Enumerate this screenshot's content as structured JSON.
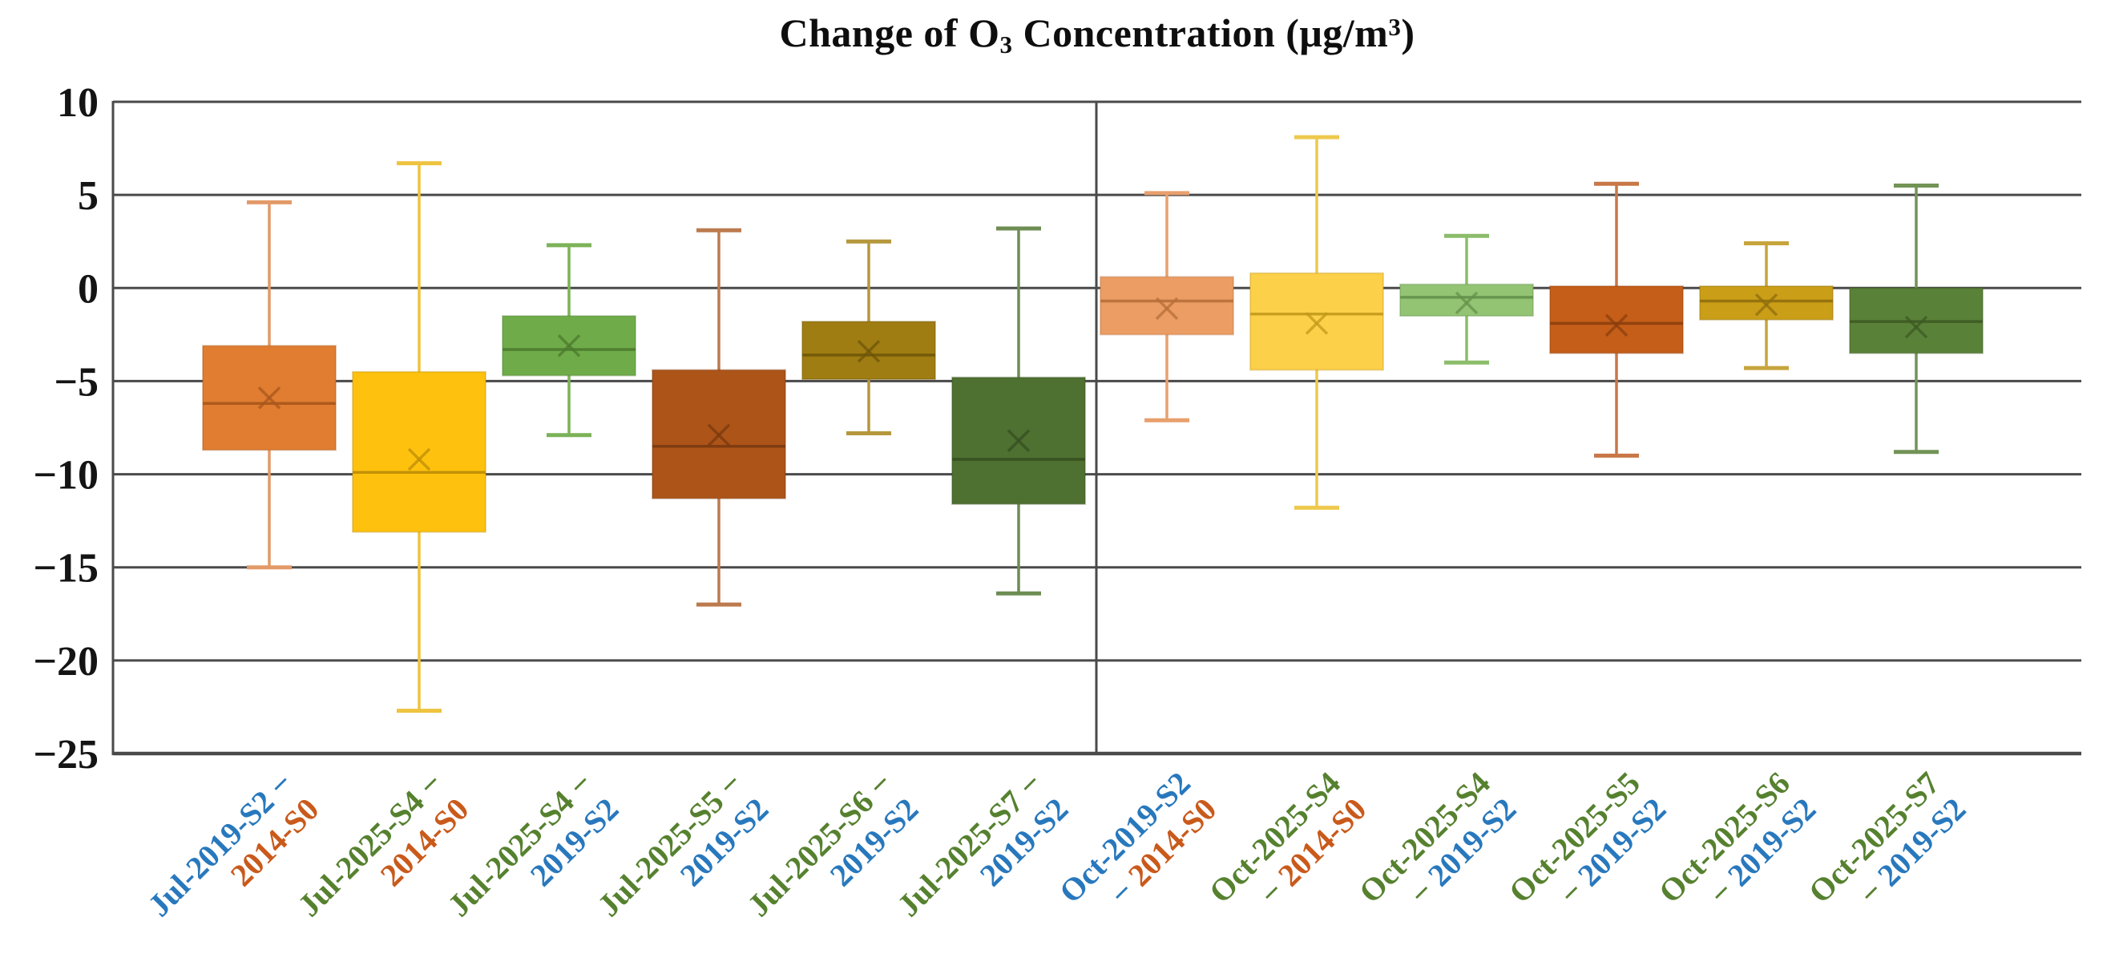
{
  "title": {
    "prefix": "Change of O",
    "sub": "3",
    "mid": " Concentration (μg/m",
    "sup": "3",
    "suffix": ")"
  },
  "y_axis": {
    "tick_labels": [
      "10",
      "5",
      "0",
      "−5",
      "−10",
      "−15",
      "−20",
      "−25"
    ],
    "tick_values": [
      10,
      5,
      0,
      -5,
      -10,
      -15,
      -20,
      -25
    ]
  },
  "label_palette": {
    "blue": "#2878bd",
    "green": "#56812f",
    "orange": "#c95a1b"
  },
  "chart_data": {
    "type": "boxplot",
    "title": "Change of O₃ Concentration (μg/m³)",
    "ylim": [
      -25,
      10
    ],
    "ytick_interval": 5,
    "grid": "horizontal",
    "legend": "none",
    "group_divider_after_series": 6,
    "groups": [
      "Jul",
      "Oct"
    ],
    "series": [
      {
        "label": "Jul-2019-S2 − 2014-S0",
        "period_a": "Jul-2019-S2",
        "period_a_color": "blue",
        "period_b": "2014-S0",
        "period_b_color": "orange",
        "minus_position": "after_a",
        "fill": "#e07d31",
        "edge": "#a9571c",
        "whisker_color": "#e29a68",
        "whisker_low": -15.0,
        "q1": -8.7,
        "median": -6.2,
        "mean": -5.9,
        "q3": -3.1,
        "whisker_high": 4.6
      },
      {
        "label": "Jul-2025-S4 − 2014-S0",
        "period_a": "Jul-2025-S4",
        "period_a_color": "green",
        "period_b": "2014-S0",
        "period_b_color": "orange",
        "minus_position": "after_a",
        "fill": "#fec20e",
        "edge": "#bd8d06",
        "whisker_color": "#eec33f",
        "whisker_low": -22.7,
        "q1": -13.1,
        "median": -9.9,
        "mean": -9.2,
        "q3": -4.5,
        "whisker_high": 6.7
      },
      {
        "label": "Jul-2025-S4 − 2019-S2",
        "period_a": "Jul-2025-S4",
        "period_a_color": "green",
        "period_b": "2019-S2",
        "period_b_color": "blue",
        "minus_position": "after_a",
        "fill": "#6fac49",
        "edge": "#4b7a2e",
        "whisker_color": "#7cb258",
        "whisker_low": -7.9,
        "q1": -4.7,
        "median": -3.3,
        "mean": -3.1,
        "q3": -1.5,
        "whisker_high": 2.3
      },
      {
        "label": "Jul-2025-S5 − 2019-S2",
        "period_a": "Jul-2025-S5",
        "period_a_color": "green",
        "period_b": "2019-S2",
        "period_b_color": "blue",
        "minus_position": "after_a",
        "fill": "#ad5418",
        "edge": "#7a3a0f",
        "whisker_color": "#bc7a4e",
        "whisker_low": -17.0,
        "q1": -11.3,
        "median": -8.5,
        "mean": -7.9,
        "q3": -4.4,
        "whisker_high": 3.1
      },
      {
        "label": "Jul-2025-S6 − 2019-S2",
        "period_a": "Jul-2025-S6",
        "period_a_color": "green",
        "period_b": "2019-S2",
        "period_b_color": "blue",
        "minus_position": "after_a",
        "fill": "#a07d12",
        "edge": "#6f560a",
        "whisker_color": "#b5973d",
        "whisker_low": -7.8,
        "q1": -4.9,
        "median": -3.6,
        "mean": -3.4,
        "q3": -1.8,
        "whisker_high": 2.5
      },
      {
        "label": "Jul-2025-S7 − 2019-S2",
        "period_a": "Jul-2025-S7",
        "period_a_color": "green",
        "period_b": "2019-S2",
        "period_b_color": "blue",
        "minus_position": "after_a",
        "fill": "#4e7031",
        "edge": "#364f20",
        "whisker_color": "#6d8d53",
        "whisker_low": -16.4,
        "q1": -11.6,
        "median": -9.2,
        "mean": -8.2,
        "q3": -4.8,
        "whisker_high": 3.2
      },
      {
        "label": "Oct-2019-S2 − 2014-S0",
        "period_a": "Oct-2019-S2",
        "period_a_color": "blue",
        "period_b": "2014-S0",
        "period_b_color": "orange",
        "minus_position": "before_b",
        "fill": "#eb9d64",
        "edge": "#b76f38",
        "whisker_color": "#e8a06e",
        "whisker_low": -7.1,
        "q1": -2.5,
        "median": -0.7,
        "mean": -1.1,
        "q3": 0.6,
        "whisker_high": 5.1
      },
      {
        "label": "Oct-2025-S4 − 2014-S0",
        "period_a": "Oct-2025-S4",
        "period_a_color": "green",
        "period_b": "2014-S0",
        "period_b_color": "orange",
        "minus_position": "before_b",
        "fill": "#fdd04a",
        "edge": "#c2991a",
        "whisker_color": "#eec94e",
        "whisker_low": -11.8,
        "q1": -4.4,
        "median": -1.4,
        "mean": -1.9,
        "q3": 0.8,
        "whisker_high": 8.1
      },
      {
        "label": "Oct-2025-S4 − 2019-S2",
        "period_a": "Oct-2025-S4",
        "period_a_color": "green",
        "period_b": "2019-S2",
        "period_b_color": "blue",
        "minus_position": "before_b",
        "fill": "#93c474",
        "edge": "#63914a",
        "whisker_color": "#8bbd6a",
        "whisker_low": -4.0,
        "q1": -1.5,
        "median": -0.5,
        "mean": -0.8,
        "q3": 0.2,
        "whisker_high": 2.8
      },
      {
        "label": "Oct-2025-S5 − 2019-S2",
        "period_a": "Oct-2025-S5",
        "period_a_color": "green",
        "period_b": "2019-S2",
        "period_b_color": "blue",
        "minus_position": "before_b",
        "fill": "#c55e18",
        "edge": "#8b3f0e",
        "whisker_color": "#c87747",
        "whisker_low": -9.0,
        "q1": -3.5,
        "median": -1.9,
        "mean": -2.0,
        "q3": 0.1,
        "whisker_high": 5.6
      },
      {
        "label": "Oct-2025-S6 − 2019-S2",
        "period_a": "Oct-2025-S6",
        "period_a_color": "green",
        "period_b": "2019-S2",
        "period_b_color": "blue",
        "minus_position": "before_b",
        "fill": "#cb9e18",
        "edge": "#8f6e0c",
        "whisker_color": "#c7a43c",
        "whisker_low": -4.3,
        "q1": -1.7,
        "median": -0.7,
        "mean": -0.9,
        "q3": 0.1,
        "whisker_high": 2.4
      },
      {
        "label": "Oct-2025-S7 − 2019-S2",
        "period_a": "Oct-2025-S7",
        "period_a_color": "green",
        "period_b": "2019-S2",
        "period_b_color": "blue",
        "minus_position": "before_b",
        "fill": "#5a8138",
        "edge": "#3d5a23",
        "whisker_color": "#729356",
        "whisker_low": -8.8,
        "q1": -3.5,
        "median": -1.8,
        "mean": -2.1,
        "q3": 0.0,
        "whisker_high": 5.5
      }
    ]
  }
}
